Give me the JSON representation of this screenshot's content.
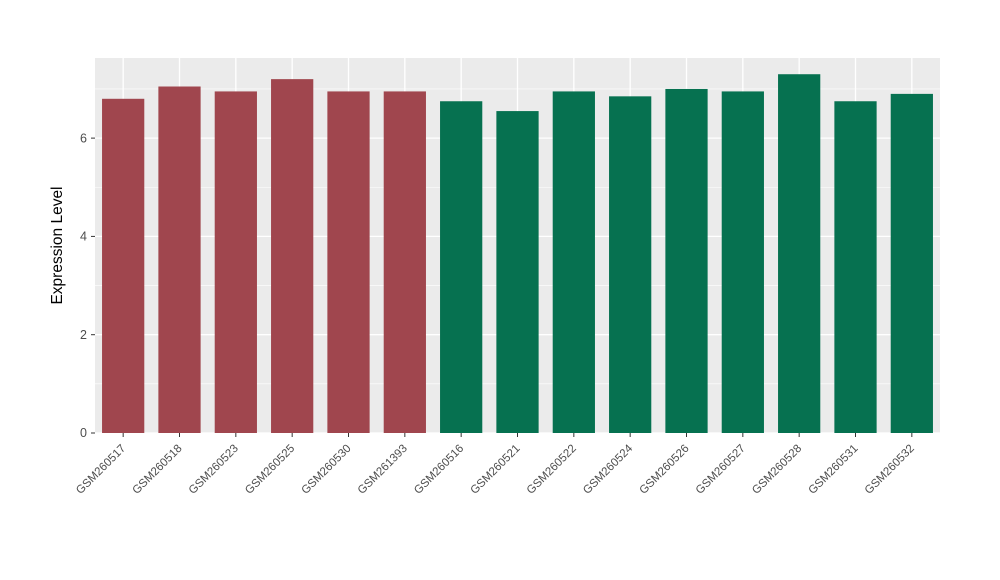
{
  "chart_data": {
    "type": "bar",
    "title": "",
    "xlabel": "",
    "ylabel": "Expression Level",
    "ylim": [
      0,
      7.63
    ],
    "yticks": [
      0,
      2,
      4,
      6
    ],
    "yticks_minor": [
      1,
      3,
      5,
      7
    ],
    "grid": true,
    "legend": "none",
    "categories": [
      "GSM260517",
      "GSM260518",
      "GSM260523",
      "GSM260525",
      "GSM260530",
      "GSM261393",
      "GSM260516",
      "GSM260521",
      "GSM260522",
      "GSM260524",
      "GSM260526",
      "GSM260527",
      "GSM260528",
      "GSM260531",
      "GSM260532"
    ],
    "values": [
      6.8,
      7.05,
      6.95,
      7.2,
      6.95,
      6.95,
      6.75,
      6.55,
      6.95,
      6.85,
      7.0,
      6.95,
      7.3,
      6.75,
      6.9
    ],
    "groups": [
      "red",
      "red",
      "red",
      "red",
      "red",
      "red",
      "green",
      "green",
      "green",
      "green",
      "green",
      "green",
      "green",
      "green",
      "green"
    ],
    "group_colors": {
      "red": "#A0464E",
      "green": "#067150"
    }
  },
  "style": {
    "panel_background": "#EBEBEB",
    "grid_color": "#FFFFFF",
    "tick_label_color": "#4D4D4D",
    "axis_title_color": "#000000",
    "tick_mark_color": "#333333",
    "outer_background": "#FFFFFF"
  }
}
